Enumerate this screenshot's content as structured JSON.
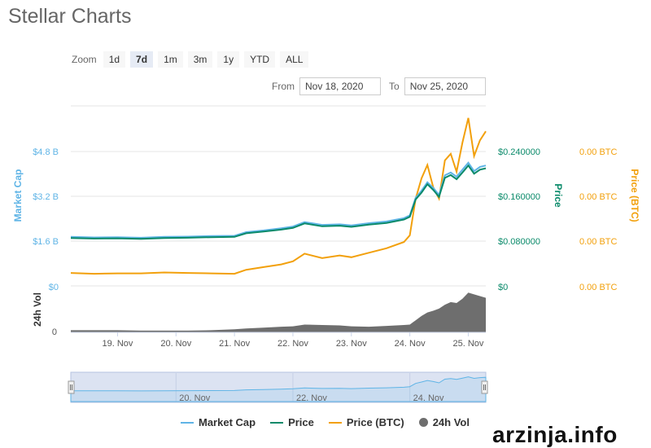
{
  "page": {
    "title": "Stellar Charts"
  },
  "zoom": {
    "label": "Zoom",
    "buttons": [
      "1d",
      "7d",
      "1m",
      "3m",
      "1y",
      "YTD",
      "ALL"
    ],
    "active": "7d"
  },
  "range": {
    "from_label": "From",
    "from_value": "Nov 18, 2020",
    "to_label": "To",
    "to_value": "Nov 25, 2020"
  },
  "watermark": "arzinja.info",
  "colors": {
    "market_cap": "#5fb4e6",
    "price": "#0a8a6a",
    "price_btc": "#f2a00c",
    "volume": "#6e6e6e"
  },
  "chart_data": {
    "type": "line",
    "title": "",
    "legend_position": "bottom-center",
    "x_ticks": [
      "19. Nov",
      "20. Nov",
      "21. Nov",
      "22. Nov",
      "23. Nov",
      "24. Nov",
      "25. Nov"
    ],
    "navigator_ticks": [
      "20. Nov",
      "22. Nov",
      "24. Nov"
    ],
    "axes": {
      "market_cap": {
        "label": "Market Cap",
        "ticks": [
          "$0",
          "$1.6 B",
          "$3.2 B",
          "$4.8 B"
        ],
        "range": [
          0,
          4.8
        ]
      },
      "price": {
        "label": "Price",
        "ticks": [
          "$0",
          "$0.080000",
          "$0.160000",
          "$0.240000"
        ],
        "range": [
          0,
          0.24
        ]
      },
      "price_btc": {
        "label": "Price (BTC)",
        "ticks": [
          "0.00 BTC",
          "0.00 BTC",
          "0.00 BTC",
          "0.00 BTC"
        ]
      },
      "volume": {
        "label": "24h Vol",
        "ticks": [
          "0"
        ]
      }
    },
    "series": [
      {
        "name": "Market Cap",
        "x": [
          18.2,
          18.6,
          19.0,
          19.4,
          19.8,
          20.2,
          20.6,
          21.0,
          21.2,
          21.5,
          21.8,
          22.0,
          22.2,
          22.5,
          22.8,
          23.0,
          23.3,
          23.6,
          23.9,
          24.0,
          24.1,
          24.2,
          24.3,
          24.4,
          24.5,
          24.6,
          24.7,
          24.8,
          24.9,
          25.0,
          25.1,
          25.2,
          25.3
        ],
        "values": [
          1.75,
          1.73,
          1.74,
          1.72,
          1.75,
          1.76,
          1.78,
          1.79,
          1.92,
          1.98,
          2.06,
          2.12,
          2.28,
          2.18,
          2.2,
          2.16,
          2.24,
          2.3,
          2.42,
          2.52,
          3.15,
          3.4,
          3.7,
          3.5,
          3.25,
          3.95,
          4.05,
          3.9,
          4.15,
          4.4,
          4.1,
          4.25,
          4.3
        ]
      },
      {
        "name": "Price",
        "x": [
          18.2,
          18.6,
          19.0,
          19.4,
          19.8,
          20.2,
          20.6,
          21.0,
          21.2,
          21.5,
          21.8,
          22.0,
          22.2,
          22.5,
          22.8,
          23.0,
          23.3,
          23.6,
          23.9,
          24.0,
          24.1,
          24.2,
          24.3,
          24.4,
          24.5,
          24.6,
          24.7,
          24.8,
          24.9,
          25.0,
          25.1,
          25.2,
          25.3
        ],
        "values": [
          0.0855,
          0.0845,
          0.085,
          0.084,
          0.0855,
          0.086,
          0.087,
          0.0875,
          0.094,
          0.097,
          0.1005,
          0.1035,
          0.1115,
          0.1065,
          0.1075,
          0.1055,
          0.1095,
          0.1125,
          0.1185,
          0.1235,
          0.1545,
          0.1665,
          0.1815,
          0.1715,
          0.159,
          0.193,
          0.198,
          0.1905,
          0.2025,
          0.215,
          0.2005,
          0.2075,
          0.21
        ]
      },
      {
        "name": "Price (BTC)",
        "x": [
          18.2,
          18.6,
          19.0,
          19.4,
          19.8,
          20.2,
          20.6,
          21.0,
          21.2,
          21.5,
          21.8,
          22.0,
          22.2,
          22.5,
          22.8,
          23.0,
          23.3,
          23.6,
          23.9,
          24.0,
          24.1,
          24.2,
          24.3,
          24.4,
          24.5,
          24.6,
          24.7,
          24.8,
          24.9,
          25.0,
          25.1,
          25.2,
          25.3
        ],
        "values": [
          0.29,
          0.27,
          0.28,
          0.28,
          0.3,
          0.29,
          0.28,
          0.27,
          0.36,
          0.42,
          0.48,
          0.55,
          0.72,
          0.62,
          0.68,
          0.64,
          0.74,
          0.84,
          0.98,
          1.13,
          1.95,
          2.4,
          2.7,
          2.2,
          1.95,
          2.8,
          2.95,
          2.55,
          3.2,
          3.75,
          2.9,
          3.25,
          3.45
        ]
      },
      {
        "name": "24h Vol",
        "x": [
          18.2,
          18.6,
          19.0,
          19.4,
          19.8,
          20.2,
          20.6,
          21.0,
          21.2,
          21.5,
          21.8,
          22.0,
          22.2,
          22.5,
          22.8,
          23.0,
          23.3,
          23.6,
          23.9,
          24.0,
          24.1,
          24.2,
          24.3,
          24.4,
          24.5,
          24.6,
          24.7,
          24.8,
          24.9,
          25.0,
          25.1,
          25.2,
          25.3
        ],
        "values": [
          0.05,
          0.05,
          0.05,
          0.04,
          0.04,
          0.04,
          0.05,
          0.07,
          0.09,
          0.11,
          0.13,
          0.14,
          0.18,
          0.17,
          0.16,
          0.14,
          0.13,
          0.15,
          0.17,
          0.18,
          0.28,
          0.38,
          0.46,
          0.5,
          0.55,
          0.64,
          0.7,
          0.68,
          0.78,
          0.92,
          0.88,
          0.84,
          0.8
        ]
      }
    ]
  }
}
